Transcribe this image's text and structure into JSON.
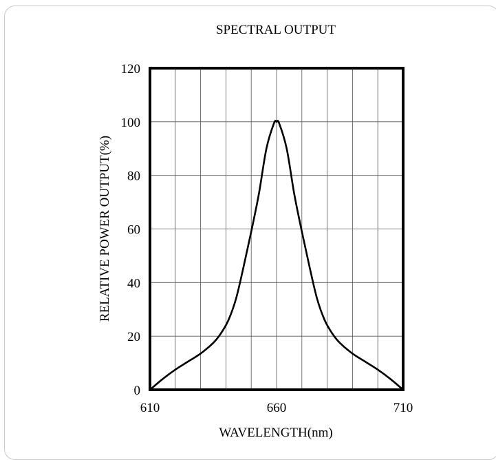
{
  "chart_data": {
    "type": "line",
    "title": "SPECTRAL OUTPUT",
    "xlabel": "WAVELENGTH(nm)",
    "ylabel": "RELATIVE POWER OUTPUT(%)",
    "xlim": [
      610,
      710
    ],
    "ylim": [
      0,
      120
    ],
    "x_ticks": [
      610,
      660,
      710
    ],
    "y_ticks": [
      0,
      20,
      40,
      60,
      80,
      100,
      120
    ],
    "x_tick_labels": [
      "610",
      "660",
      "710"
    ],
    "y_tick_labels": [
      "0",
      "20",
      "40",
      "60",
      "80",
      "100",
      "120"
    ],
    "grid": true,
    "x_grid_step": 10,
    "y_grid_step": 20,
    "series": [
      {
        "x": [
          610,
          615,
          620,
          625,
          630,
          635,
          638,
          641,
          644,
          647,
          650,
          653,
          656,
          659,
          660,
          661,
          664,
          667,
          670,
          673,
          676,
          679,
          682,
          685,
          690,
          695,
          700,
          705,
          710
        ],
        "values": [
          0,
          4,
          7.5,
          10.5,
          13.5,
          17.5,
          21,
          26,
          34,
          46,
          59,
          73,
          90,
          99.5,
          100,
          99.5,
          90,
          73,
          59,
          46,
          34,
          26,
          21,
          17.5,
          13.5,
          10.5,
          7.5,
          4,
          0
        ],
        "color": "#000000"
      }
    ]
  }
}
